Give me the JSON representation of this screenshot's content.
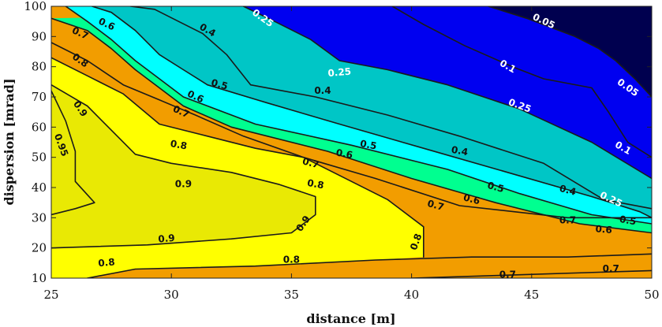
{
  "chart_data": {
    "type": "contour",
    "xlabel": "distance [m]",
    "ylabel": "dispersion [mrad]",
    "xlim": [
      25,
      50
    ],
    "ylim": [
      10,
      100
    ],
    "x_ticks": [
      25,
      30,
      35,
      40,
      45,
      50
    ],
    "y_ticks": [
      10,
      20,
      30,
      40,
      50,
      60,
      70,
      80,
      90,
      100
    ],
    "fill_colors": {
      "below_0.05": "#00004f",
      "0.05_0.25": "#0000f0",
      "0.25_0.4": "#00c6c6",
      "0.4_0.5": "#00ffff",
      "0.5_0.6": "#00ff90",
      "0.6_0.8": "#f29d00",
      "0.8_0.9": "#ffff00",
      "above_0.9": "#e9e904"
    },
    "contours": [
      {
        "level": "0.05",
        "points": [
          [
            43.2,
            100
          ],
          [
            44.8,
            96
          ],
          [
            45.8,
            93
          ],
          [
            46.8,
            90
          ],
          [
            47.8,
            86
          ],
          [
            48.5,
            82
          ],
          [
            49.3,
            76
          ],
          [
            50,
            70
          ]
        ]
      },
      {
        "level": "0.1",
        "points": [
          [
            39.2,
            100
          ],
          [
            40.5,
            94
          ],
          [
            42.2,
            87
          ],
          [
            44.2,
            80
          ],
          [
            45.5,
            76
          ],
          [
            47.5,
            73
          ],
          [
            48.2,
            65
          ],
          [
            49.0,
            55
          ],
          [
            50,
            50
          ]
        ]
      },
      {
        "level": "0.25",
        "points": [
          [
            33.0,
            100
          ],
          [
            34.3,
            95
          ],
          [
            35.8,
            89
          ],
          [
            37.0,
            82
          ],
          [
            39.0,
            79
          ],
          [
            41.5,
            74
          ],
          [
            44.5,
            66
          ],
          [
            47.5,
            55
          ],
          [
            50,
            43
          ]
        ]
      },
      {
        "level": "0.25",
        "points": [
          [
            28.3,
            100
          ],
          [
            29.3,
            99
          ],
          [
            30.3,
            95
          ],
          [
            31.3,
            91
          ],
          [
            32.3,
            84
          ],
          [
            33.3,
            74
          ],
          [
            36.0,
            70
          ],
          [
            39.0,
            64
          ],
          [
            42.0,
            57
          ],
          [
            45.5,
            48
          ],
          [
            48.0,
            36
          ],
          [
            50,
            33
          ]
        ]
      },
      {
        "level": "0.4",
        "points": [
          [
            26.7,
            100
          ],
          [
            27.5,
            98
          ],
          [
            28.5,
            92
          ],
          [
            29.5,
            84
          ],
          [
            30.5,
            79
          ],
          [
            31.5,
            74
          ],
          [
            34.0,
            68
          ],
          [
            37.0,
            61
          ],
          [
            40.5,
            53
          ],
          [
            44.0,
            45
          ],
          [
            47.5,
            37
          ],
          [
            49.5,
            32
          ],
          [
            50,
            30
          ]
        ]
      },
      {
        "level": "0.5",
        "points": [
          [
            25.6,
            100
          ],
          [
            26.5,
            95
          ],
          [
            27.5,
            89
          ],
          [
            28.5,
            82
          ],
          [
            29.5,
            76
          ],
          [
            30.5,
            70
          ],
          [
            33.5,
            61
          ],
          [
            37.5,
            54
          ],
          [
            41.5,
            46
          ],
          [
            44.5,
            38
          ],
          [
            47.5,
            31
          ],
          [
            50,
            28
          ]
        ]
      },
      {
        "level": "0.6",
        "points": [
          [
            25,
            96
          ],
          [
            26.5,
            92
          ],
          [
            27.5,
            86
          ],
          [
            28.5,
            79
          ],
          [
            29.5,
            73
          ],
          [
            30.5,
            67
          ],
          [
            32.5,
            60
          ],
          [
            36.5,
            52
          ],
          [
            40.0,
            43
          ],
          [
            43.5,
            35
          ],
          [
            47.0,
            28
          ],
          [
            50,
            25
          ]
        ]
      },
      {
        "level": "0.7",
        "points": [
          [
            25,
            88
          ],
          [
            26.5,
            82
          ],
          [
            28.0,
            74
          ],
          [
            29.5,
            69
          ],
          [
            31.0,
            64
          ],
          [
            33.0,
            57
          ],
          [
            35.5,
            50
          ],
          [
            38.5,
            43
          ],
          [
            42.0,
            34
          ],
          [
            46.5,
            30
          ],
          [
            50,
            30
          ]
        ]
      },
      {
        "level": "0.8",
        "points": [
          [
            25,
            83
          ],
          [
            26.5,
            77
          ],
          [
            28.0,
            71
          ],
          [
            29.5,
            61
          ],
          [
            31.5,
            57
          ],
          [
            33.5,
            53
          ],
          [
            35.5,
            50
          ],
          [
            37.5,
            42
          ],
          [
            39.0,
            36
          ],
          [
            40.5,
            27
          ],
          [
            40.5,
            17
          ]
        ]
      },
      {
        "level": "0.9",
        "points": [
          [
            25,
            74
          ],
          [
            26.5,
            67
          ],
          [
            27.5,
            59
          ],
          [
            28.5,
            51
          ],
          [
            30.0,
            48
          ],
          [
            32.5,
            45
          ],
          [
            34.5,
            41
          ],
          [
            36.0,
            37
          ],
          [
            36.0,
            31
          ],
          [
            35.0,
            25
          ],
          [
            32.5,
            23
          ],
          [
            29.0,
            21
          ],
          [
            25,
            20
          ]
        ]
      },
      {
        "level": "0.95",
        "points": [
          [
            25,
            72
          ],
          [
            25.6,
            62
          ],
          [
            26.0,
            52
          ],
          [
            26.0,
            42
          ],
          [
            26.8,
            35
          ],
          [
            26.0,
            33
          ],
          [
            25,
            31
          ]
        ]
      },
      {
        "level": "0.8",
        "points": [
          [
            26.5,
            10
          ],
          [
            28.5,
            13
          ],
          [
            33.5,
            14
          ],
          [
            38.5,
            16
          ],
          [
            42.5,
            17
          ],
          [
            46.5,
            17
          ],
          [
            50,
            18
          ]
        ]
      },
      {
        "level": "0.7",
        "points": [
          [
            40.0,
            10
          ],
          [
            44.0,
            11
          ],
          [
            48.0,
            12
          ],
          [
            50,
            12.5
          ]
        ]
      }
    ],
    "contour_labels": [
      {
        "text": "0.05",
        "x": 45.5,
        "y": 95,
        "color": "#ffffff",
        "angle": 25
      },
      {
        "text": "0.1",
        "x": 44.0,
        "y": 80,
        "color": "#ffffff",
        "angle": 30
      },
      {
        "text": "0.05",
        "x": 49.0,
        "y": 73,
        "color": "#ffffff",
        "angle": 35
      },
      {
        "text": "0.1",
        "x": 48.8,
        "y": 53,
        "color": "#ffffff",
        "angle": 30
      },
      {
        "text": "0.25",
        "x": 33.8,
        "y": 96,
        "color": "#ffffff",
        "angle": 35
      },
      {
        "text": "0.25",
        "x": 37.0,
        "y": 78,
        "color": "#ffffff",
        "angle": -5
      },
      {
        "text": "0.25",
        "x": 44.5,
        "y": 67,
        "color": "#ffffff",
        "angle": 20
      },
      {
        "text": "0.25",
        "x": 48.3,
        "y": 36,
        "color": "#ffffff",
        "angle": 25
      },
      {
        "text": "0.4",
        "x": 31.5,
        "y": 92,
        "color": "#111111",
        "angle": 30
      },
      {
        "text": "0.4",
        "x": 36.3,
        "y": 72,
        "color": "#111111",
        "angle": 0
      },
      {
        "text": "0.4",
        "x": 42.0,
        "y": 52,
        "color": "#111111",
        "angle": 10
      },
      {
        "text": "0.4",
        "x": 46.5,
        "y": 39,
        "color": "#111111",
        "angle": 15
      },
      {
        "text": "0.5",
        "x": 32.0,
        "y": 74,
        "color": "#111111",
        "angle": 15
      },
      {
        "text": "0.5",
        "x": 38.2,
        "y": 54,
        "color": "#111111",
        "angle": 10
      },
      {
        "text": "0.5",
        "x": 43.5,
        "y": 40,
        "color": "#111111",
        "angle": 15
      },
      {
        "text": "0.5",
        "x": 49.0,
        "y": 29,
        "color": "#111111",
        "angle": 10
      },
      {
        "text": "0.6",
        "x": 27.3,
        "y": 94,
        "color": "#111111",
        "angle": 25
      },
      {
        "text": "0.6",
        "x": 31.0,
        "y": 70,
        "color": "#111111",
        "angle": 25
      },
      {
        "text": "0.6",
        "x": 37.2,
        "y": 51,
        "color": "#111111",
        "angle": 10
      },
      {
        "text": "0.6",
        "x": 42.5,
        "y": 36,
        "color": "#111111",
        "angle": 15
      },
      {
        "text": "0.6",
        "x": 48.0,
        "y": 26,
        "color": "#111111",
        "angle": 5
      },
      {
        "text": "0.7",
        "x": 26.2,
        "y": 91,
        "color": "#111111",
        "angle": 25
      },
      {
        "text": "0.7",
        "x": 30.4,
        "y": 65,
        "color": "#111111",
        "angle": 25
      },
      {
        "text": "0.7",
        "x": 35.8,
        "y": 48,
        "color": "#111111",
        "angle": 15
      },
      {
        "text": "0.7",
        "x": 41.0,
        "y": 34,
        "color": "#111111",
        "angle": 15
      },
      {
        "text": "0.7",
        "x": 46.5,
        "y": 29,
        "color": "#111111",
        "angle": 0
      },
      {
        "text": "0.7",
        "x": 44.0,
        "y": 11,
        "color": "#111111",
        "angle": 0
      },
      {
        "text": "0.7",
        "x": 48.3,
        "y": 13,
        "color": "#111111",
        "angle": 0
      },
      {
        "text": "0.8",
        "x": 26.2,
        "y": 82,
        "color": "#111111",
        "angle": 35
      },
      {
        "text": "0.8",
        "x": 30.3,
        "y": 54,
        "color": "#111111",
        "angle": 10
      },
      {
        "text": "0.8",
        "x": 36.0,
        "y": 41,
        "color": "#111111",
        "angle": 10
      },
      {
        "text": "0.8",
        "x": 40.2,
        "y": 22,
        "color": "#111111",
        "angle": -70
      },
      {
        "text": "0.8",
        "x": 27.3,
        "y": 15,
        "color": "#111111",
        "angle": -5
      },
      {
        "text": "0.8",
        "x": 35.0,
        "y": 16,
        "color": "#111111",
        "angle": 0
      },
      {
        "text": "0.9",
        "x": 26.2,
        "y": 66,
        "color": "#111111",
        "angle": 55
      },
      {
        "text": "0.9",
        "x": 30.5,
        "y": 41,
        "color": "#111111",
        "angle": 0
      },
      {
        "text": "0.9",
        "x": 35.5,
        "y": 28,
        "color": "#111111",
        "angle": -55
      },
      {
        "text": "0.9",
        "x": 29.8,
        "y": 23,
        "color": "#111111",
        "angle": -5
      },
      {
        "text": "0.95",
        "x": 25.4,
        "y": 54,
        "color": "#111111",
        "angle": 70
      }
    ]
  }
}
